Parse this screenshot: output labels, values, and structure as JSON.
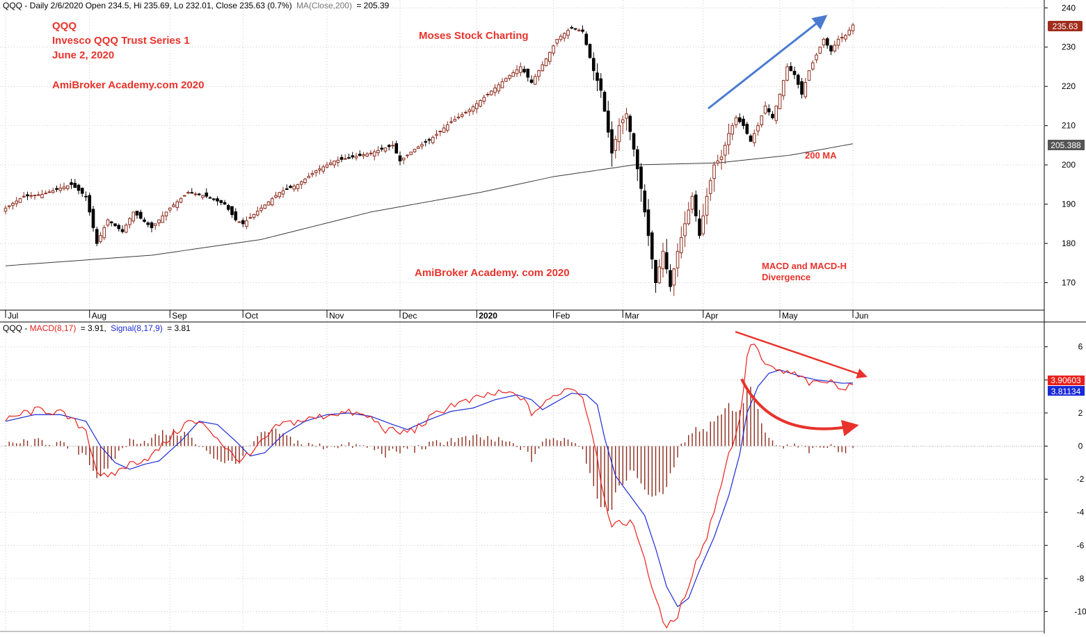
{
  "header": {
    "price_info": "QQQ - Daily 2/6/2020 Open 234.5, Hi 235.69, Lo 232.01, Close 235.63 (0.7%)",
    "ma_info": "MA(Close,200)",
    "ma_value": "= 205.39",
    "macd_prefix": "QQQ - ",
    "macd_label": "MACD(8,17)",
    "macd_value": "= 3.91,",
    "signal_label": "Signal(8,17,9)",
    "signal_value": "= 3.81"
  },
  "annotations": {
    "ticker": "QQQ",
    "fund_name": "Invesco QQQ Trust Series 1",
    "date": "June 2, 2020",
    "brand_1": "AmiBroker Academy.com  2020",
    "brand_center": "Moses Stock Charting",
    "brand_2": "AmiBroker Academy. com  2020",
    "ma_label": "200 MA",
    "divergence_line1": "MACD and MACD-H",
    "divergence_line2": "Divergence"
  },
  "value_tags": {
    "last_close": "235.63",
    "ma_last": "205.388",
    "macd_last": "3.90603",
    "signal_last": "3.81134"
  },
  "colors": {
    "candle_up": "#8b2a1a",
    "candle_down": "#000000",
    "ma_line": "#3a3a3a",
    "macd_line": "#e8211c",
    "signal_line": "#1a2bd6",
    "histogram": "#8b2a1a",
    "annotation_red": "#e8332c",
    "arrow_blue": "#4a7bd0",
    "close_tag": "#a02c1c",
    "ma_tag": "#555555",
    "macd_tag": "#e8211c",
    "signal_tag": "#1a2bd6"
  },
  "chart_data": [
    {
      "type": "candlestick",
      "symbol": "QQQ",
      "ylim": [
        163,
        242
      ],
      "yticks": [
        170,
        180,
        190,
        200,
        210,
        220,
        230,
        240
      ],
      "x_months": [
        {
          "label": "Jul",
          "index": 0
        },
        {
          "label": "Aug",
          "index": 23
        },
        {
          "label": "Sep",
          "index": 45
        },
        {
          "label": "Oct",
          "index": 65
        },
        {
          "label": "Nov",
          "index": 88
        },
        {
          "label": "Dec",
          "index": 108
        },
        {
          "label": "2020",
          "index": 129
        },
        {
          "label": "Feb",
          "index": 150
        },
        {
          "label": "Mar",
          "index": 169
        },
        {
          "label": "Apr",
          "index": 191
        },
        {
          "label": "May",
          "index": 212
        },
        {
          "label": "Jun",
          "index": 232
        }
      ],
      "close_waypoints": [
        [
          0,
          189
        ],
        [
          5,
          192
        ],
        [
          10,
          192.5
        ],
        [
          18,
          195
        ],
        [
          22,
          192
        ],
        [
          25,
          180
        ],
        [
          28,
          186
        ],
        [
          32,
          183
        ],
        [
          35,
          188
        ],
        [
          40,
          184
        ],
        [
          45,
          189
        ],
        [
          50,
          193
        ],
        [
          55,
          192
        ],
        [
          60,
          190
        ],
        [
          63,
          186
        ],
        [
          65,
          185
        ],
        [
          70,
          189
        ],
        [
          75,
          193
        ],
        [
          80,
          195
        ],
        [
          85,
          198.5
        ],
        [
          90,
          201
        ],
        [
          95,
          202
        ],
        [
          100,
          203
        ],
        [
          106,
          205
        ],
        [
          108,
          201
        ],
        [
          112,
          204
        ],
        [
          117,
          207
        ],
        [
          122,
          211
        ],
        [
          127,
          214
        ],
        [
          132,
          218
        ],
        [
          137,
          222
        ],
        [
          141,
          225
        ],
        [
          144,
          221
        ],
        [
          148,
          227
        ],
        [
          151,
          232
        ],
        [
          155,
          235
        ],
        [
          158,
          234
        ],
        [
          161,
          224
        ],
        [
          163,
          219
        ],
        [
          166,
          203
        ],
        [
          168,
          210
        ],
        [
          170,
          213
        ],
        [
          172,
          204
        ],
        [
          174,
          194
        ],
        [
          176,
          182
        ],
        [
          178,
          170
        ],
        [
          180,
          178
        ],
        [
          182,
          169
        ],
        [
          184,
          178
        ],
        [
          186,
          185
        ],
        [
          188,
          192
        ],
        [
          190,
          182
        ],
        [
          192,
          192
        ],
        [
          194,
          200
        ],
        [
          196,
          202
        ],
        [
          198,
          208
        ],
        [
          200,
          212
        ],
        [
          202,
          210
        ],
        [
          204,
          206
        ],
        [
          206,
          210
        ],
        [
          208,
          215
        ],
        [
          210,
          212
        ],
        [
          212,
          218
        ],
        [
          214,
          225
        ],
        [
          216,
          223
        ],
        [
          218,
          218
        ],
        [
          220,
          224
        ],
        [
          222,
          228
        ],
        [
          224,
          232
        ],
        [
          226,
          229
        ],
        [
          228,
          232
        ],
        [
          230,
          233
        ],
        [
          232,
          235.63
        ]
      ],
      "ma200_waypoints": [
        [
          0,
          174.3
        ],
        [
          40,
          177
        ],
        [
          70,
          181
        ],
        [
          100,
          188
        ],
        [
          130,
          193
        ],
        [
          150,
          197
        ],
        [
          172,
          200
        ],
        [
          195,
          200.5
        ],
        [
          215,
          202.5
        ],
        [
          232,
          205.39
        ]
      ],
      "last": {
        "open": 234.5,
        "high": 235.69,
        "low": 232.01,
        "close": 235.63,
        "change_pct": 0.7,
        "ma200": 205.39
      }
    },
    {
      "type": "line",
      "title": "MACD(8,17), Signal(8,17,9)",
      "ylim": [
        -11.2,
        7.5
      ],
      "yticks": [
        -10,
        -8,
        -6,
        -4,
        -2,
        0,
        2,
        4,
        6
      ],
      "series": [
        {
          "name": "MACD(8,17)",
          "waypoints": [
            [
              0,
              1.5
            ],
            [
              5,
              2
            ],
            [
              10,
              2.2
            ],
            [
              15,
              2
            ],
            [
              22,
              1
            ],
            [
              25,
              -1.5
            ],
            [
              28,
              -2
            ],
            [
              32,
              -1.3
            ],
            [
              35,
              -1
            ],
            [
              40,
              -0.6
            ],
            [
              45,
              0.5
            ],
            [
              50,
              1.5
            ],
            [
              55,
              1.2
            ],
            [
              58,
              0.5
            ],
            [
              63,
              -0.8
            ],
            [
              67,
              -0.6
            ],
            [
              70,
              0.2
            ],
            [
              75,
              1.3
            ],
            [
              80,
              1.5
            ],
            [
              85,
              1.7
            ],
            [
              90,
              2
            ],
            [
              95,
              2
            ],
            [
              100,
              1.7
            ],
            [
              104,
              1
            ],
            [
              108,
              0.8
            ],
            [
              112,
              1
            ],
            [
              117,
              1.8
            ],
            [
              122,
              2.5
            ],
            [
              127,
              2.7
            ],
            [
              132,
              3.1
            ],
            [
              137,
              3.2
            ],
            [
              141,
              3
            ],
            [
              144,
              2
            ],
            [
              148,
              2.6
            ],
            [
              151,
              3.2
            ],
            [
              155,
              3.6
            ],
            [
              158,
              3
            ],
            [
              161,
              0.5
            ],
            [
              163,
              -2
            ],
            [
              166,
              -5
            ],
            [
              168,
              -4.7
            ],
            [
              171,
              -4.5
            ],
            [
              174,
              -6
            ],
            [
              177,
              -8.5
            ],
            [
              180,
              -10.7
            ],
            [
              183,
              -10.8
            ],
            [
              186,
              -9
            ],
            [
              189,
              -7
            ],
            [
              192,
              -5.5
            ],
            [
              195,
              -3
            ],
            [
              198,
              -0.5
            ],
            [
              201,
              1.5
            ],
            [
              203,
              5.5
            ],
            [
              205,
              6.3
            ],
            [
              207,
              5.2
            ],
            [
              209,
              4.7
            ],
            [
              212,
              4.5
            ],
            [
              215,
              4.4
            ],
            [
              218,
              4.1
            ],
            [
              221,
              3.7
            ],
            [
              224,
              3.9
            ],
            [
              227,
              3.8
            ],
            [
              230,
              3.5
            ],
            [
              232,
              3.906
            ]
          ]
        },
        {
          "name": "Signal(8,17,9)",
          "waypoints": [
            [
              0,
              1.5
            ],
            [
              8,
              1.9
            ],
            [
              15,
              1.9
            ],
            [
              22,
              1.5
            ],
            [
              26,
              0
            ],
            [
              30,
              -1
            ],
            [
              34,
              -1.4
            ],
            [
              38,
              -1.1
            ],
            [
              42,
              -0.9
            ],
            [
              48,
              0.3
            ],
            [
              53,
              1.5
            ],
            [
              58,
              1.3
            ],
            [
              63,
              0.3
            ],
            [
              67,
              -0.6
            ],
            [
              71,
              -0.4
            ],
            [
              76,
              0.7
            ],
            [
              82,
              1.5
            ],
            [
              88,
              1.9
            ],
            [
              94,
              2
            ],
            [
              100,
              1.8
            ],
            [
              106,
              1.3
            ],
            [
              110,
              1
            ],
            [
              116,
              1.6
            ],
            [
              122,
              2.1
            ],
            [
              128,
              2.3
            ],
            [
              134,
              2.8
            ],
            [
              140,
              3.1
            ],
            [
              144,
              2.8
            ],
            [
              147,
              2.2
            ],
            [
              151,
              2.7
            ],
            [
              155,
              3.2
            ],
            [
              159,
              3.1
            ],
            [
              162,
              2.5
            ],
            [
              164,
              0.5
            ],
            [
              167,
              -1.8
            ],
            [
              171,
              -3
            ],
            [
              175,
              -4.2
            ],
            [
              178,
              -6.2
            ],
            [
              181,
              -8.5
            ],
            [
              184,
              -9.7
            ],
            [
              187,
              -9.2
            ],
            [
              190,
              -7.5
            ],
            [
              194,
              -5.5
            ],
            [
              198,
              -3
            ],
            [
              201,
              -0.5
            ],
            [
              203,
              2
            ],
            [
              206,
              3.6
            ],
            [
              209,
              4.4
            ],
            [
              212,
              4.6
            ],
            [
              215,
              4.4
            ],
            [
              218,
              4.2
            ],
            [
              222,
              4
            ],
            [
              226,
              3.9
            ],
            [
              229,
              3.8
            ],
            [
              232,
              3.811
            ]
          ]
        },
        {
          "name": "MACD-H"
        }
      ]
    }
  ]
}
